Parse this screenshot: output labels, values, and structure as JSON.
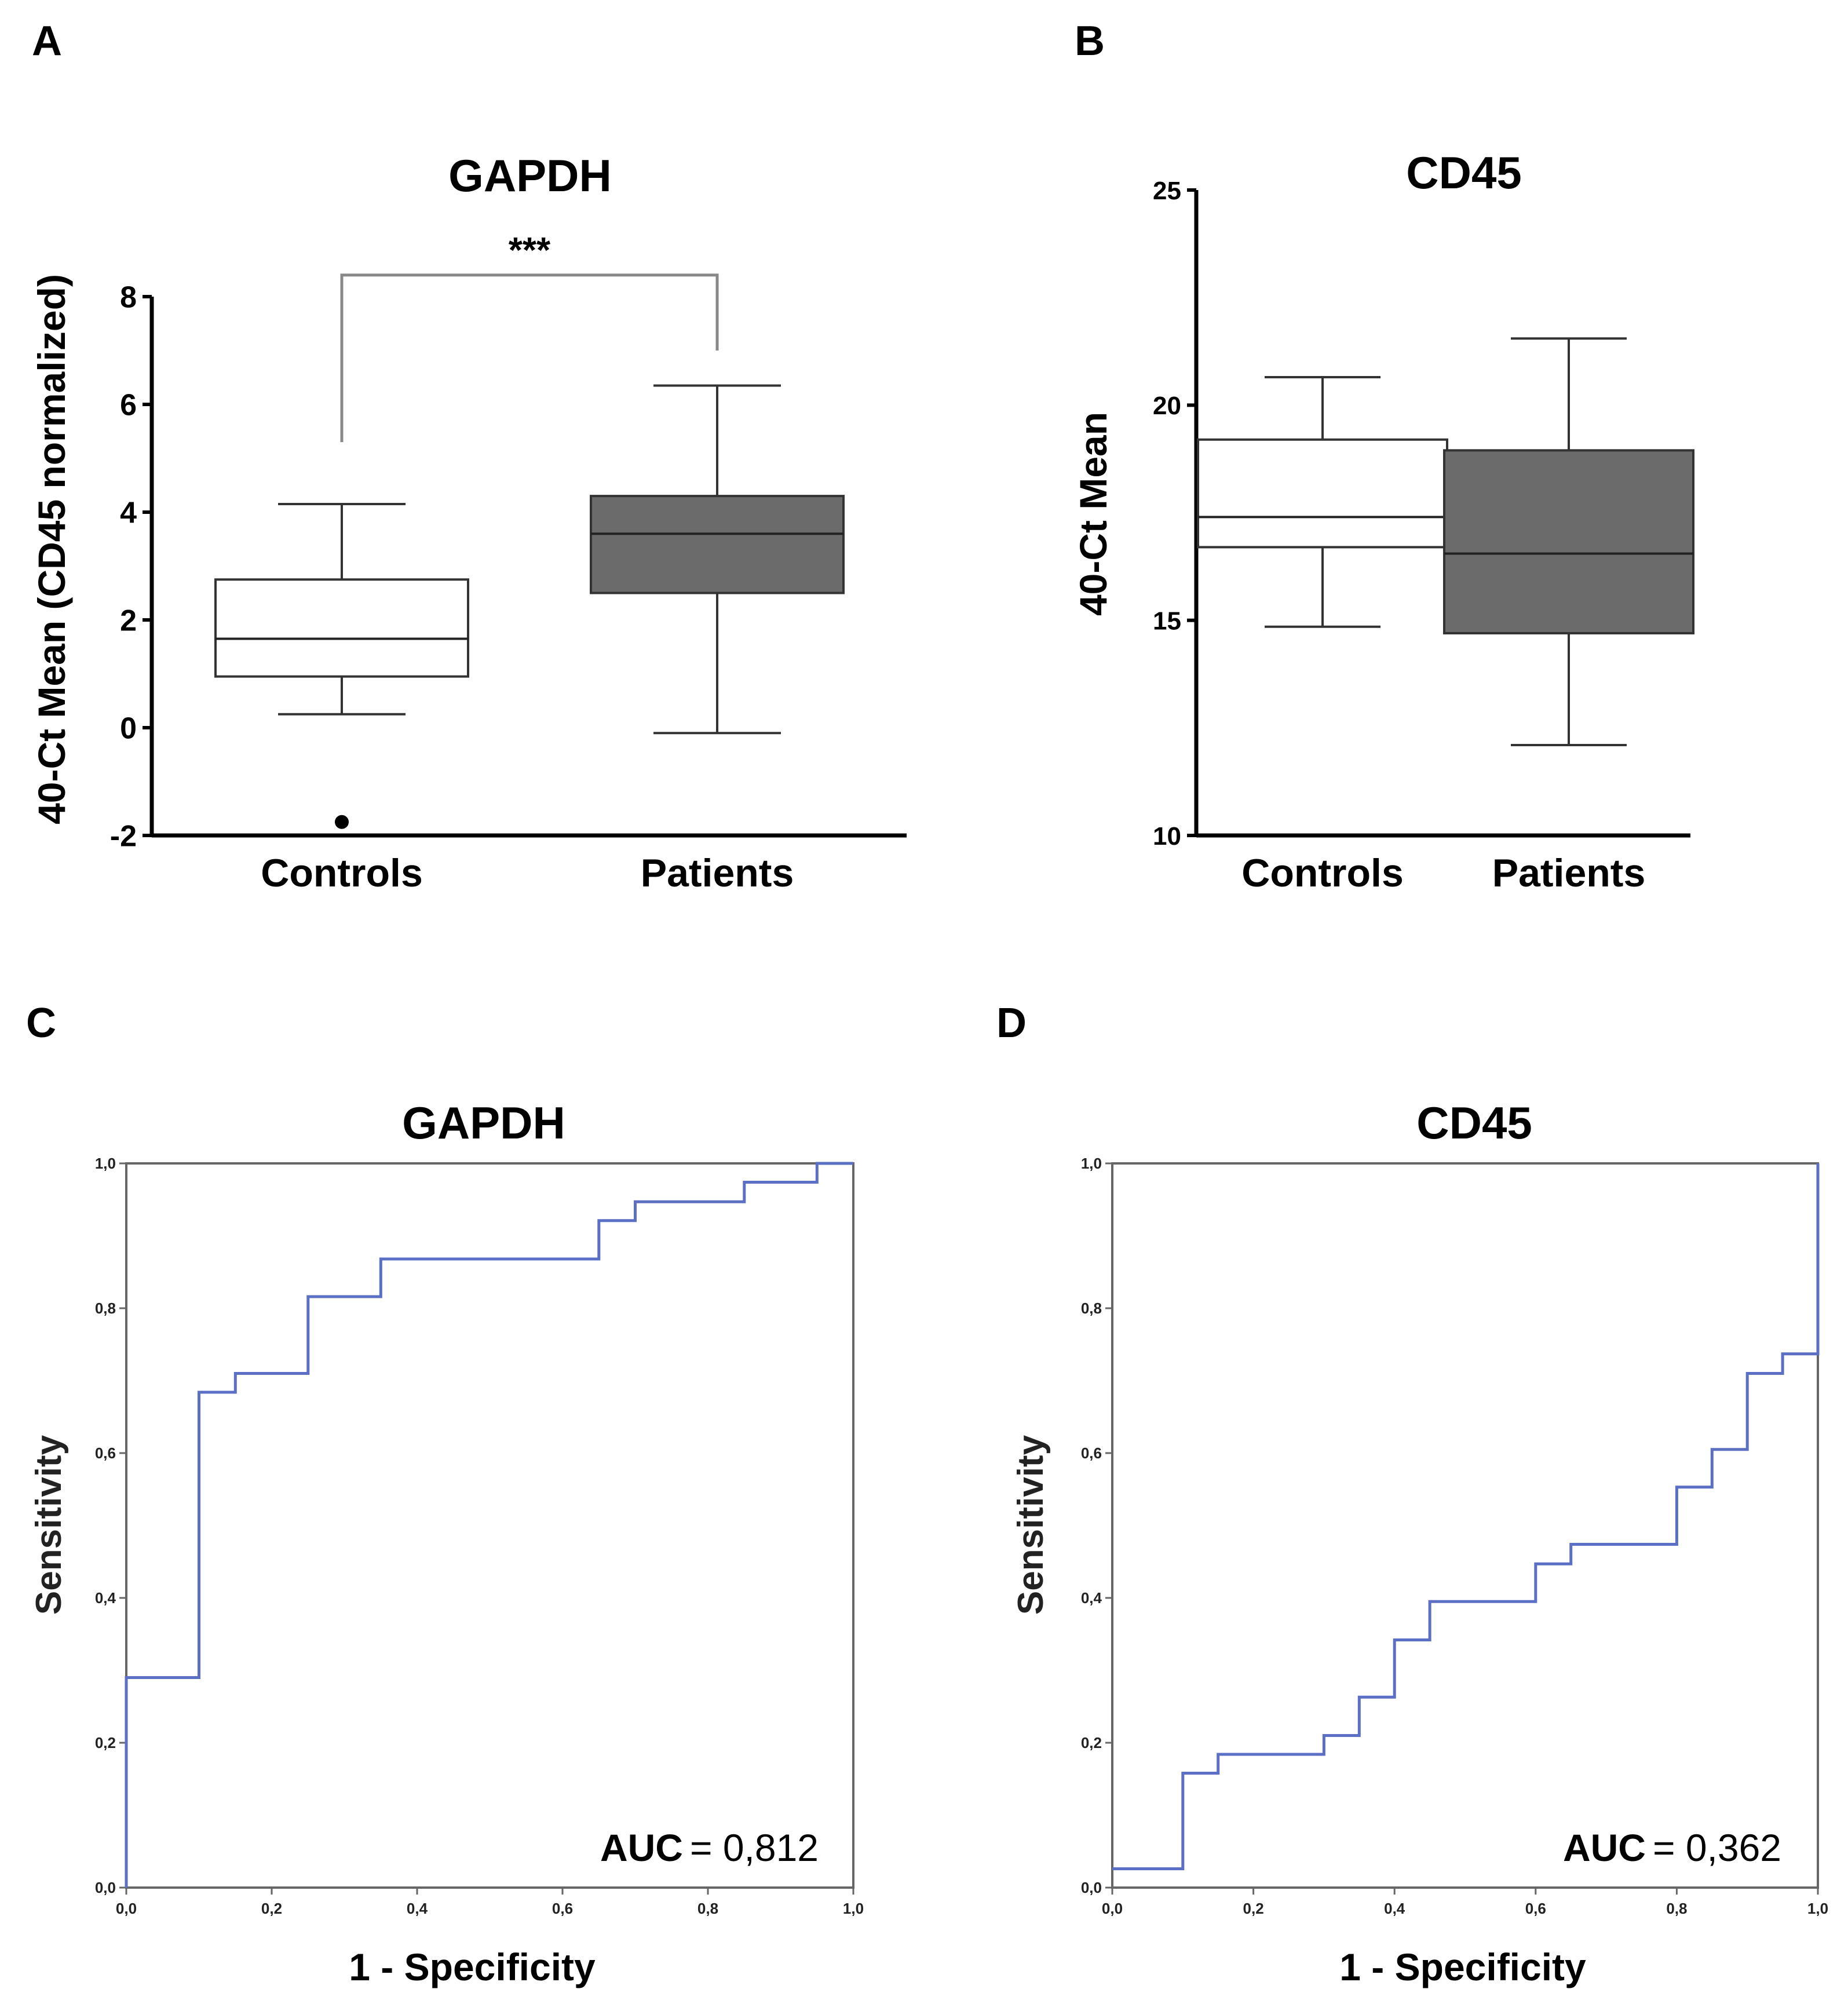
{
  "panel_labels": [
    "A",
    "B",
    "C",
    "D"
  ],
  "colors": {
    "axis": "#000000",
    "controls_box": "#ffffff",
    "patients_box": "#6b6b6b",
    "roc_line": "#5b6fc4",
    "frame": "#666666"
  },
  "chart_data": [
    {
      "panel": "A",
      "type": "box",
      "title": "GAPDH",
      "ylabel": "40-Ct Mean (CD45 normalized)",
      "ylim": [
        -2,
        8
      ],
      "yticks": [
        "-2",
        "0",
        "2",
        "4",
        "6",
        "8"
      ],
      "categories": [
        "Controls",
        "Patients"
      ],
      "boxes": [
        {
          "name": "Controls",
          "whisker_low": 0.25,
          "q1": 0.95,
          "median": 1.65,
          "q3": 2.75,
          "whisker_high": 4.15,
          "outliers": [
            -1.75
          ]
        },
        {
          "name": "Patients",
          "whisker_low": -0.1,
          "q1": 2.5,
          "median": 3.6,
          "q3": 4.3,
          "whisker_high": 6.35,
          "outliers": []
        }
      ],
      "significance": {
        "label": "***",
        "bracket_y": 8.4,
        "left_tip": 5.3,
        "right_tip": 7.0
      }
    },
    {
      "panel": "B",
      "type": "box",
      "title": "CD45",
      "ylabel": "40-Ct Mean",
      "ylim": [
        10,
        25
      ],
      "yticks": [
        "10",
        "15",
        "20",
        "25"
      ],
      "categories": [
        "Controls",
        "Patients"
      ],
      "boxes": [
        {
          "name": "Controls",
          "whisker_low": 14.85,
          "q1": 16.7,
          "median": 17.4,
          "q3": 19.2,
          "whisker_high": 20.65,
          "outliers": []
        },
        {
          "name": "Patients",
          "whisker_low": 12.1,
          "q1": 14.7,
          "median": 16.55,
          "q3": 18.95,
          "whisker_high": 21.55,
          "outliers": []
        }
      ]
    },
    {
      "panel": "C",
      "type": "line",
      "subtype": "roc",
      "title": "GAPDH",
      "xlabel": "1 - Specificity",
      "ylabel": "Sensitivity",
      "xlim": [
        0,
        1
      ],
      "ylim": [
        0,
        1
      ],
      "xticks": [
        "0,0",
        "0,2",
        "0,4",
        "0,6",
        "0,8",
        "1,0"
      ],
      "yticks": [
        "0,0",
        "0,2",
        "0,4",
        "0,6",
        "0,8",
        "1,0"
      ],
      "auc_label": "AUC",
      "auc_value": "= 0,812",
      "x": [
        0,
        0,
        0.1,
        0.1,
        0.15,
        0.15,
        0.25,
        0.25,
        0.35,
        0.35,
        0.65,
        0.65,
        0.7,
        0.7,
        0.85,
        0.85,
        0.95,
        0.95,
        1.0
      ],
      "y": [
        0,
        0.29,
        0.29,
        0.684,
        0.684,
        0.71,
        0.71,
        0.816,
        0.816,
        0.868,
        0.868,
        0.921,
        0.921,
        0.947,
        0.947,
        0.974,
        0.974,
        1.0,
        1.0
      ]
    },
    {
      "panel": "D",
      "type": "line",
      "subtype": "roc",
      "title": "CD45",
      "xlabel": "1 - Specificity",
      "ylabel": "Sensitivity",
      "xlim": [
        0,
        1
      ],
      "ylim": [
        0,
        1
      ],
      "xticks": [
        "0,0",
        "0,2",
        "0,4",
        "0,6",
        "0,8",
        "1,0"
      ],
      "yticks": [
        "0,0",
        "0,2",
        "0,4",
        "0,6",
        "0,8",
        "1,0"
      ],
      "auc_label": "AUC",
      "auc_value": "= 0,362",
      "x": [
        0,
        0.1,
        0.1,
        0.15,
        0.15,
        0.3,
        0.3,
        0.35,
        0.35,
        0.4,
        0.4,
        0.45,
        0.45,
        0.6,
        0.6,
        0.65,
        0.65,
        0.8,
        0.8,
        0.85,
        0.85,
        0.9,
        0.9,
        0.95,
        0.95,
        1.0,
        1.0
      ],
      "y": [
        0.026,
        0.026,
        0.158,
        0.158,
        0.184,
        0.184,
        0.21,
        0.21,
        0.263,
        0.263,
        0.342,
        0.342,
        0.395,
        0.395,
        0.447,
        0.447,
        0.474,
        0.474,
        0.553,
        0.553,
        0.605,
        0.605,
        0.71,
        0.71,
        0.737,
        0.737,
        1.0
      ]
    }
  ]
}
